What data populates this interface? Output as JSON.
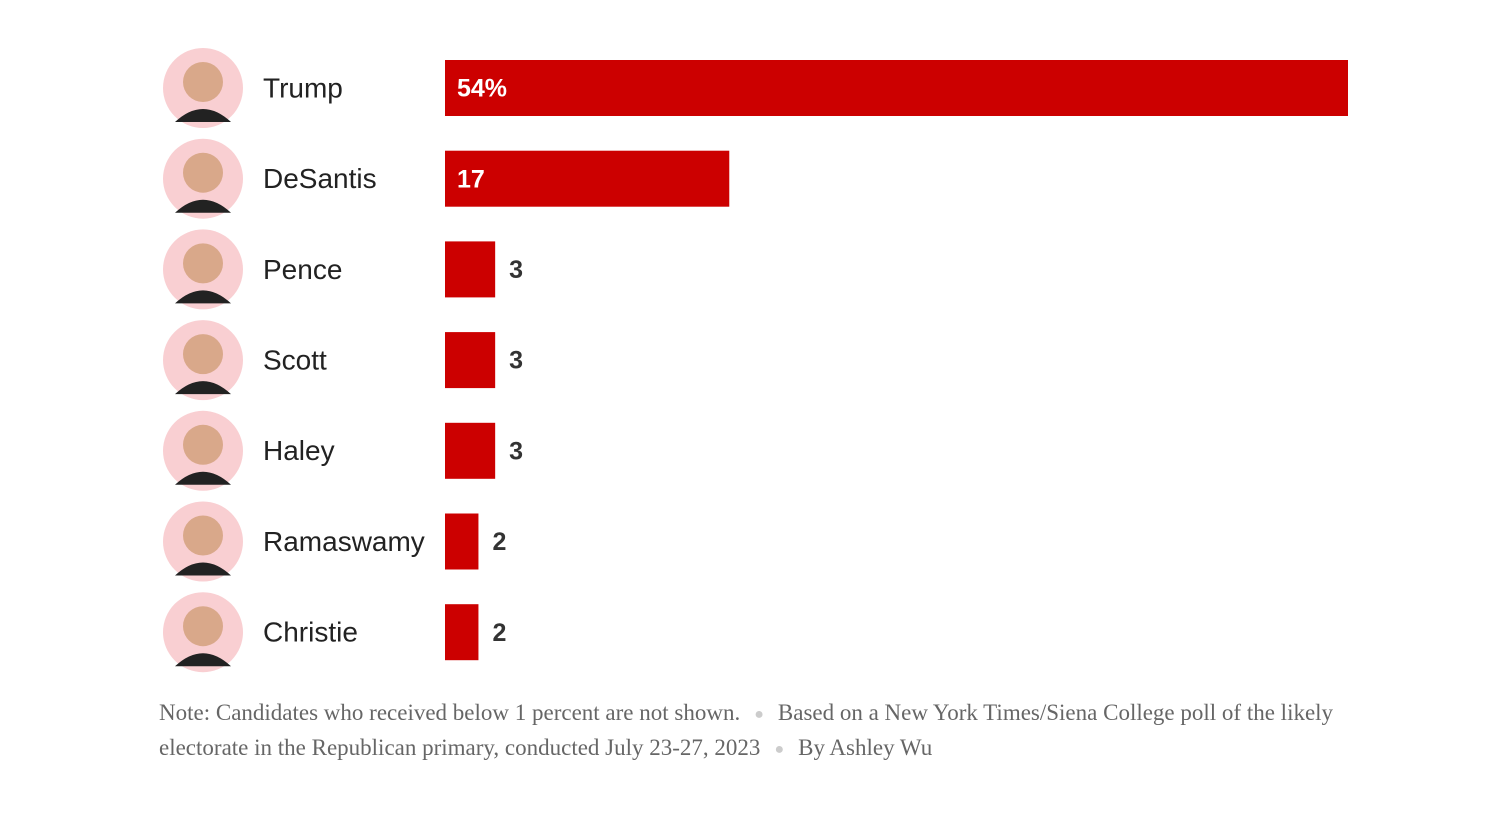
{
  "chart_data": {
    "type": "bar",
    "orientation": "horizontal",
    "categories": [
      "Trump",
      "DeSantis",
      "Pence",
      "Scott",
      "Haley",
      "Ramaswamy",
      "Christie"
    ],
    "values": [
      54,
      17,
      3,
      3,
      3,
      2,
      2
    ],
    "value_labels": [
      "54%",
      "17",
      "3",
      "3",
      "3",
      "2",
      "2"
    ],
    "color": "#cc0000",
    "note": {
      "label": "Note:",
      "text": "Candidates who received below 1 percent are not shown.",
      "source": "Based on a New York Times/Siena College poll of the likely electorate in the Republican primary, conducted July 23-27, 2023",
      "byline": "By Ashley Wu"
    }
  }
}
